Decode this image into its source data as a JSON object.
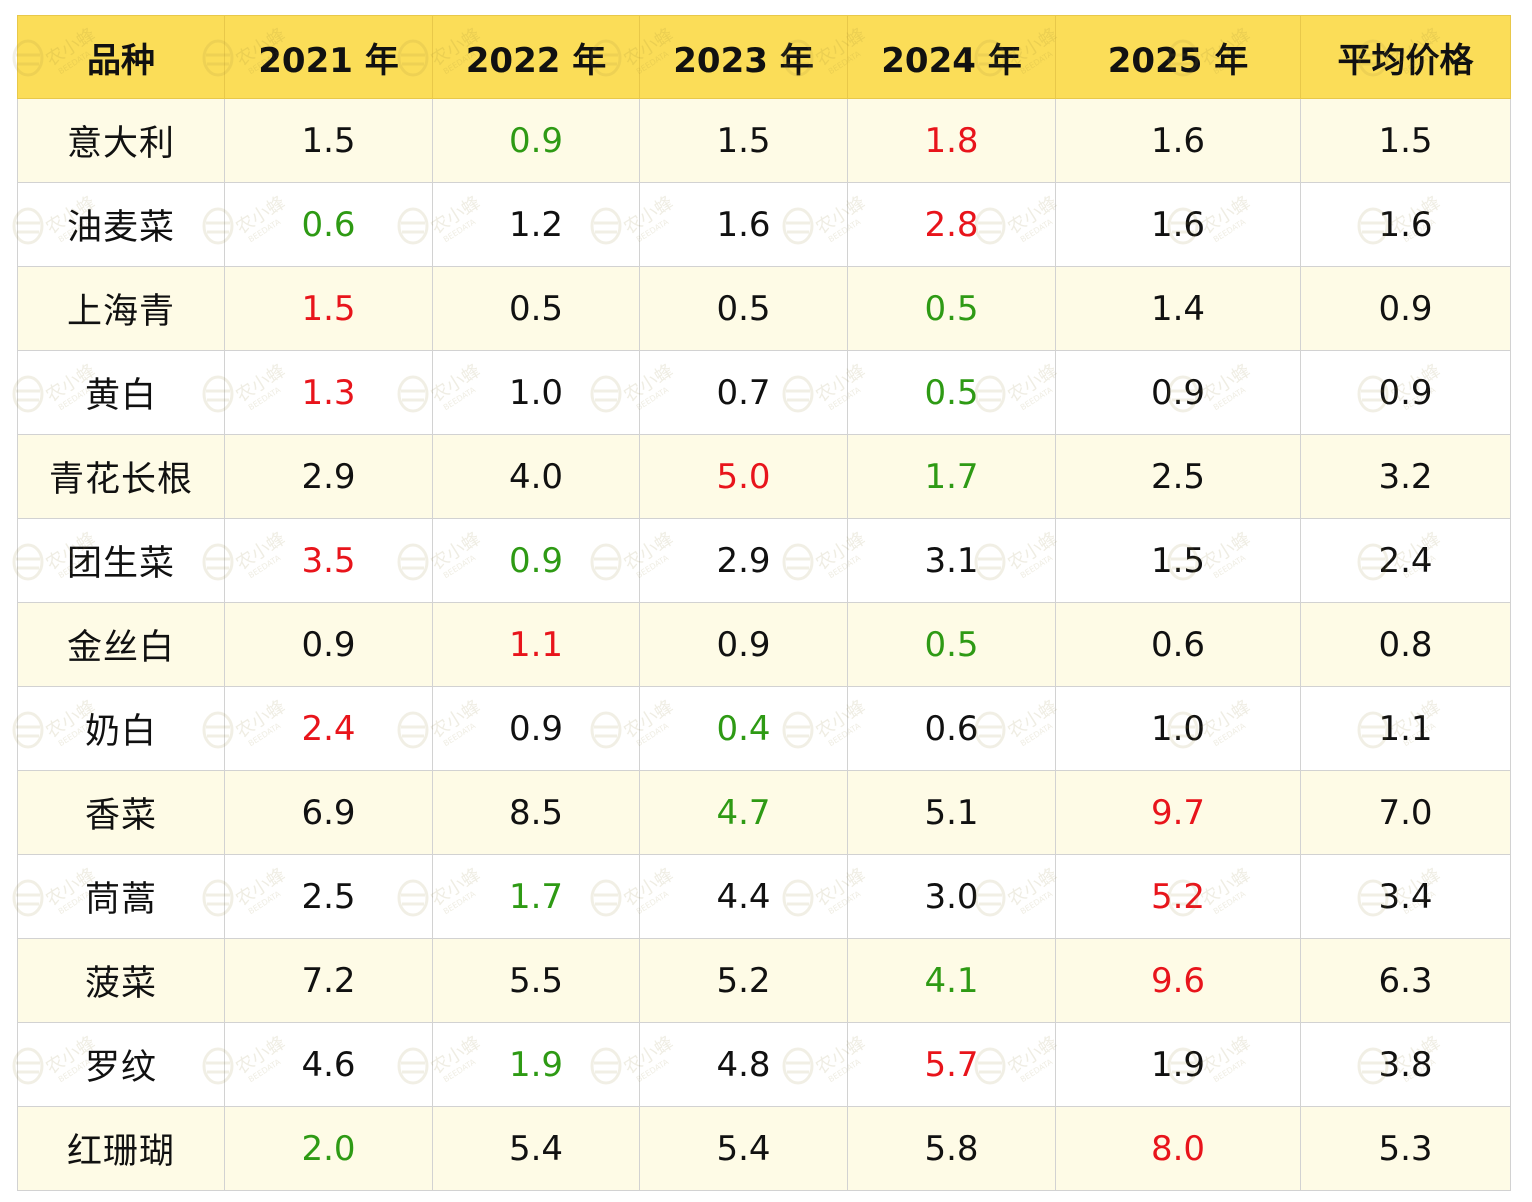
{
  "chart_data": {
    "type": "table",
    "columns": [
      "品种",
      "2021  年",
      "2022  年",
      "2023  年",
      "2024  年",
      "2025  年",
      "平均价格"
    ],
    "rows": [
      {
        "variety": "意大利",
        "values": [
          "1.5",
          "0.9",
          "1.5",
          "1.8",
          "1.6",
          "1.5"
        ],
        "mark": [
          "",
          "lo",
          "",
          "hi",
          "",
          ""
        ]
      },
      {
        "variety": "油麦菜",
        "values": [
          "0.6",
          "1.2",
          "1.6",
          "2.8",
          "1.6",
          "1.6"
        ],
        "mark": [
          "lo",
          "",
          "",
          "hi",
          "",
          ""
        ]
      },
      {
        "variety": "上海青",
        "values": [
          "1.5",
          "0.5",
          "0.5",
          "0.5",
          "1.4",
          "0.9"
        ],
        "mark": [
          "hi",
          "",
          "",
          "lo",
          "",
          ""
        ]
      },
      {
        "variety": "黄白",
        "values": [
          "1.3",
          "1.0",
          "0.7",
          "0.5",
          "0.9",
          "0.9"
        ],
        "mark": [
          "hi",
          "",
          "",
          "lo",
          "",
          ""
        ]
      },
      {
        "variety": "青花长根",
        "values": [
          "2.9",
          "4.0",
          "5.0",
          "1.7",
          "2.5",
          "3.2"
        ],
        "mark": [
          "",
          "",
          "hi",
          "lo",
          "",
          ""
        ]
      },
      {
        "variety": "团生菜",
        "values": [
          "3.5",
          "0.9",
          "2.9",
          "3.1",
          "1.5",
          "2.4"
        ],
        "mark": [
          "hi",
          "lo",
          "",
          "",
          "",
          ""
        ]
      },
      {
        "variety": "金丝白",
        "values": [
          "0.9",
          "1.1",
          "0.9",
          "0.5",
          "0.6",
          "0.8"
        ],
        "mark": [
          "",
          "hi",
          "",
          "lo",
          "",
          ""
        ]
      },
      {
        "variety": "奶白",
        "values": [
          "2.4",
          "0.9",
          "0.4",
          "0.6",
          "1.0",
          "1.1"
        ],
        "mark": [
          "hi",
          "",
          "lo",
          "",
          "",
          ""
        ]
      },
      {
        "variety": "香菜",
        "values": [
          "6.9",
          "8.5",
          "4.7",
          "5.1",
          "9.7",
          "7.0"
        ],
        "mark": [
          "",
          "",
          "lo",
          "",
          "hi",
          ""
        ]
      },
      {
        "variety": "茼蒿",
        "values": [
          "2.5",
          "1.7",
          "4.4",
          "3.0",
          "5.2",
          "3.4"
        ],
        "mark": [
          "",
          "lo",
          "",
          "",
          "hi",
          ""
        ]
      },
      {
        "variety": "菠菜",
        "values": [
          "7.2",
          "5.5",
          "5.2",
          "4.1",
          "9.6",
          "6.3"
        ],
        "mark": [
          "",
          "",
          "",
          "lo",
          "hi",
          ""
        ]
      },
      {
        "variety": "罗纹",
        "values": [
          "4.6",
          "1.9",
          "4.8",
          "5.7",
          "1.9",
          "3.8"
        ],
        "mark": [
          "",
          "lo",
          "",
          "hi",
          "",
          ""
        ]
      },
      {
        "variety": "红珊瑚",
        "values": [
          "2.0",
          "5.4",
          "5.4",
          "5.8",
          "8.0",
          "5.3"
        ],
        "mark": [
          "lo",
          "",
          "",
          "",
          "hi",
          ""
        ]
      }
    ]
  },
  "colors": {
    "header_bg": "#fbdd58",
    "odd_row_bg": "#fefbe6",
    "even_row_bg": "#ffffff",
    "high": "#e8141b",
    "low": "#2e9a14"
  },
  "watermark": {
    "text": "农小蜂",
    "subtext": "BEEDATA"
  }
}
